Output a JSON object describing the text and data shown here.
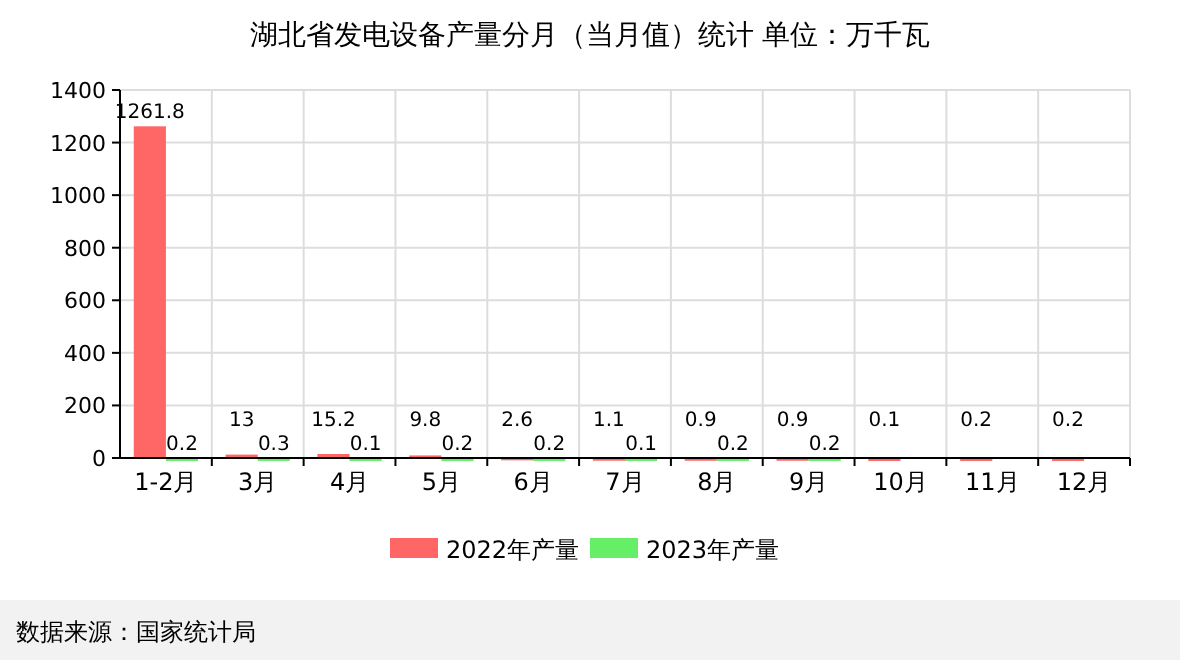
{
  "chart_data": {
    "type": "bar",
    "title": "湖北省发电设备产量分月（当月值）统计 单位：万千瓦",
    "categories": [
      "1-2月",
      "3月",
      "4月",
      "5月",
      "6月",
      "7月",
      "8月",
      "9月",
      "10月",
      "11月",
      "12月"
    ],
    "series": [
      {
        "name": "2022年产量",
        "color": "#ff6666",
        "values": [
          1261.8,
          13,
          15.2,
          9.8,
          2.6,
          1.1,
          0.9,
          0.9,
          0.1,
          0.2,
          0.2
        ]
      },
      {
        "name": "2023年产量",
        "color": "#66ee66",
        "values": [
          0.2,
          0.3,
          0.1,
          0.2,
          0.2,
          0.1,
          0.2,
          0.2,
          null,
          null,
          null
        ]
      }
    ],
    "ylim": [
      0,
      1400
    ],
    "yticks": [
      0,
      200,
      400,
      600,
      800,
      1000,
      1200,
      1400
    ],
    "grid": true,
    "legend": "bottom",
    "data_labels": true,
    "annotations": [
      "数据来源：国家统计局"
    ]
  }
}
